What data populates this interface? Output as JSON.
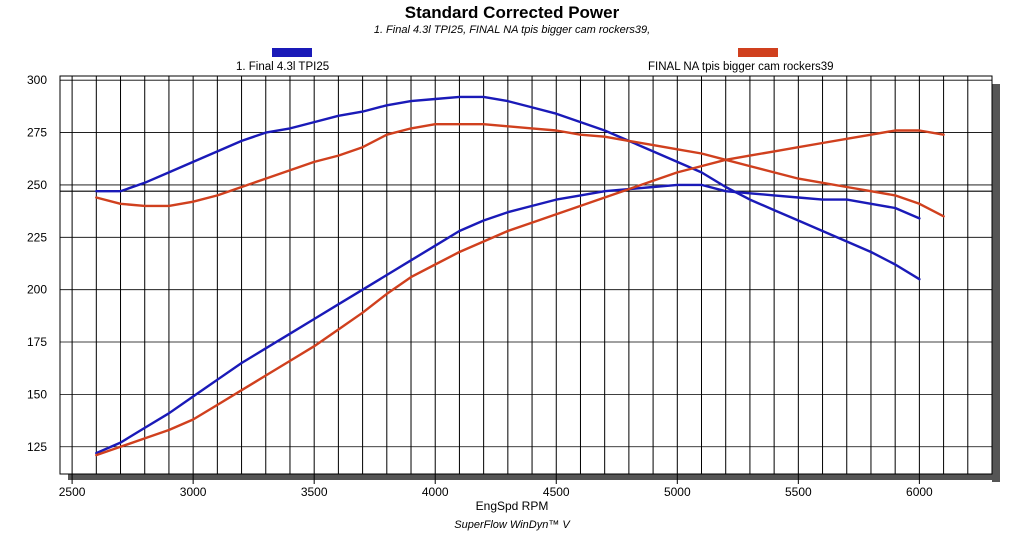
{
  "chart_data": {
    "type": "line",
    "title": "Standard Corrected Power",
    "subtitle": "1. Final 4.3l TPI25, FINAL NA tpis bigger cam rockers39,",
    "xlabel": "EngSpd RPM",
    "ylabel": "",
    "footer": "SuperFlow WinDyn™ V",
    "xlim": [
      2450,
      6300
    ],
    "ylim": [
      112,
      302
    ],
    "x_ticks": [
      2500,
      3000,
      3500,
      4000,
      4500,
      5000,
      5500,
      6000
    ],
    "x_tick_labels": [
      "2500",
      "3000",
      "3500",
      "4000",
      "4500",
      "5000",
      "5500",
      "6000"
    ],
    "y_ticks": [
      125,
      150,
      175,
      200,
      225,
      250,
      275,
      300
    ],
    "y_tick_labels": [
      "125",
      "150",
      "175",
      "200",
      "225",
      "250",
      "275",
      "300"
    ],
    "reference_line_y": 247,
    "grid": true,
    "legend_position": "top",
    "series": [
      {
        "name": "1. Final 4.3l TPI25",
        "color": "#1a1ab8",
        "curves": [
          {
            "kind": "rising",
            "x": [
              2600,
              2700,
              2800,
              2900,
              3000,
              3100,
              3200,
              3300,
              3400,
              3500,
              3600,
              3700,
              3800,
              3900,
              4000,
              4100,
              4200,
              4300,
              4400,
              4500,
              4600,
              4700,
              4800,
              4900,
              5000,
              5100,
              5200,
              5300,
              5400,
              5500,
              5600,
              5700,
              5800,
              5900,
              6000
            ],
            "y": [
              122,
              127,
              134,
              141,
              149,
              157,
              165,
              172,
              179,
              186,
              193,
              200,
              207,
              214,
              221,
              228,
              233,
              237,
              240,
              243,
              245,
              247,
              248,
              249,
              250,
              250,
              247,
              246,
              245,
              244,
              243,
              243,
              241,
              239,
              234
            ]
          },
          {
            "kind": "peaked",
            "x": [
              2600,
              2700,
              2800,
              2900,
              3000,
              3100,
              3200,
              3300,
              3400,
              3500,
              3600,
              3700,
              3800,
              3900,
              4000,
              4100,
              4200,
              4300,
              4400,
              4500,
              4600,
              4700,
              4800,
              4900,
              5000,
              5100,
              5200,
              5300,
              5400,
              5500,
              5600,
              5700,
              5800,
              5900,
              6000
            ],
            "y": [
              247,
              247,
              251,
              256,
              261,
              266,
              271,
              275,
              277,
              280,
              283,
              285,
              288,
              290,
              291,
              292,
              292,
              290,
              287,
              284,
              280,
              276,
              271,
              266,
              261,
              256,
              249,
              243,
              238,
              233,
              228,
              223,
              218,
              212,
              205
            ]
          }
        ]
      },
      {
        "name": "FINAL NA tpis bigger cam rockers39",
        "color": "#d0401e",
        "curves": [
          {
            "kind": "rising",
            "x": [
              2600,
              2700,
              2800,
              2900,
              3000,
              3100,
              3200,
              3300,
              3400,
              3500,
              3600,
              3700,
              3800,
              3900,
              4000,
              4100,
              4200,
              4300,
              4400,
              4500,
              4600,
              4700,
              4800,
              4900,
              5000,
              5100,
              5200,
              5300,
              5400,
              5500,
              5600,
              5700,
              5800,
              5900,
              6000,
              6100
            ],
            "y": [
              121,
              125,
              129,
              133,
              138,
              145,
              152,
              159,
              166,
              173,
              181,
              189,
              198,
              206,
              212,
              218,
              223,
              228,
              232,
              236,
              240,
              244,
              248,
              252,
              256,
              259,
              262,
              264,
              266,
              268,
              270,
              272,
              274,
              276,
              276,
              274
            ]
          },
          {
            "kind": "peaked",
            "x": [
              2600,
              2700,
              2800,
              2900,
              3000,
              3100,
              3200,
              3300,
              3400,
              3500,
              3600,
              3700,
              3800,
              3900,
              4000,
              4100,
              4200,
              4300,
              4400,
              4500,
              4600,
              4700,
              4800,
              4900,
              5000,
              5100,
              5200,
              5300,
              5400,
              5500,
              5600,
              5700,
              5800,
              5900,
              6000,
              6100
            ],
            "y": [
              244,
              241,
              240,
              240,
              242,
              245,
              249,
              253,
              257,
              261,
              264,
              268,
              274,
              277,
              279,
              279,
              279,
              278,
              277,
              276,
              274,
              273,
              271,
              269,
              267,
              265,
              262,
              259,
              256,
              253,
              251,
              249,
              247,
              245,
              241,
              235
            ]
          }
        ]
      }
    ]
  }
}
